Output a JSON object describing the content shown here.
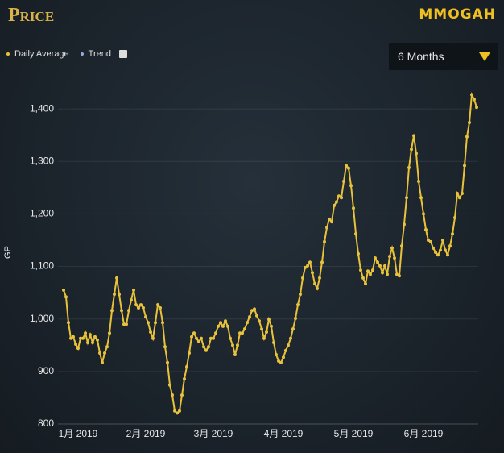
{
  "header": {
    "title": "Price",
    "logo": "MMOGAH",
    "trend_label": "Trend",
    "range_select": "6 Months"
  },
  "chart_data": {
    "type": "line",
    "y_label": "GP",
    "series": [
      {
        "name": "Daily Average",
        "color": "#e8c23a",
        "values": [
          1055,
          1042,
          993,
          963,
          966,
          952,
          944,
          963,
          963,
          973,
          955,
          970,
          955,
          966,
          960,
          935,
          917,
          935,
          947,
          973,
          1016,
          1047,
          1078,
          1047,
          1016,
          990,
          990,
          1016,
          1036,
          1055,
          1027,
          1021,
          1027,
          1021,
          1004,
          993,
          975,
          963,
          993,
          1027,
          1021,
          993,
          947,
          917,
          874,
          855,
          825,
          821,
          825,
          855,
          886,
          909,
          935,
          966,
          973,
          963,
          957,
          963,
          947,
          940,
          947,
          963,
          963,
          973,
          986,
          993,
          986,
          996,
          986,
          963,
          950,
          932,
          950,
          973,
          973,
          981,
          993,
          1004,
          1016,
          1019,
          1006,
          996,
          981,
          963,
          975,
          999,
          986,
          955,
          932,
          920,
          917,
          927,
          940,
          950,
          963,
          981,
          1001,
          1027,
          1047,
          1078,
          1098,
          1101,
          1108,
          1088,
          1067,
          1058,
          1078,
          1108,
          1147,
          1174,
          1190,
          1185,
          1216,
          1223,
          1234,
          1231,
          1262,
          1292,
          1287,
          1254,
          1211,
          1162,
          1124,
          1093,
          1078,
          1067,
          1091,
          1085,
          1093,
          1116,
          1108,
          1101,
          1088,
          1101,
          1085,
          1119,
          1135,
          1116,
          1085,
          1082,
          1139,
          1180,
          1231,
          1288,
          1323,
          1349,
          1315,
          1262,
          1231,
          1200,
          1170,
          1150,
          1147,
          1135,
          1127,
          1122,
          1131,
          1150,
          1131,
          1122,
          1139,
          1162,
          1193,
          1239,
          1231,
          1239,
          1292,
          1347,
          1374,
          1427,
          1418,
          1403
        ]
      }
    ],
    "xlim": [
      0,
      171
    ],
    "xticks": [
      {
        "value": 6,
        "label": "1月 2019"
      },
      {
        "value": 34,
        "label": "2月 2019"
      },
      {
        "value": 62,
        "label": "3月 2019"
      },
      {
        "value": 91,
        "label": "4月 2019"
      },
      {
        "value": 120,
        "label": "5月 2019"
      },
      {
        "value": 149,
        "label": "6月 2019"
      }
    ],
    "ylim": [
      800,
      1460
    ],
    "yticks": [
      800,
      900,
      {
        "value": 1000,
        "label": "1,000"
      },
      {
        "value": 1100,
        "label": "1,100"
      },
      {
        "value": 1200,
        "label": "1,200"
      },
      {
        "value": 1300,
        "label": "1,300"
      },
      {
        "value": 1400,
        "label": "1,400"
      }
    ],
    "grid": true
  }
}
